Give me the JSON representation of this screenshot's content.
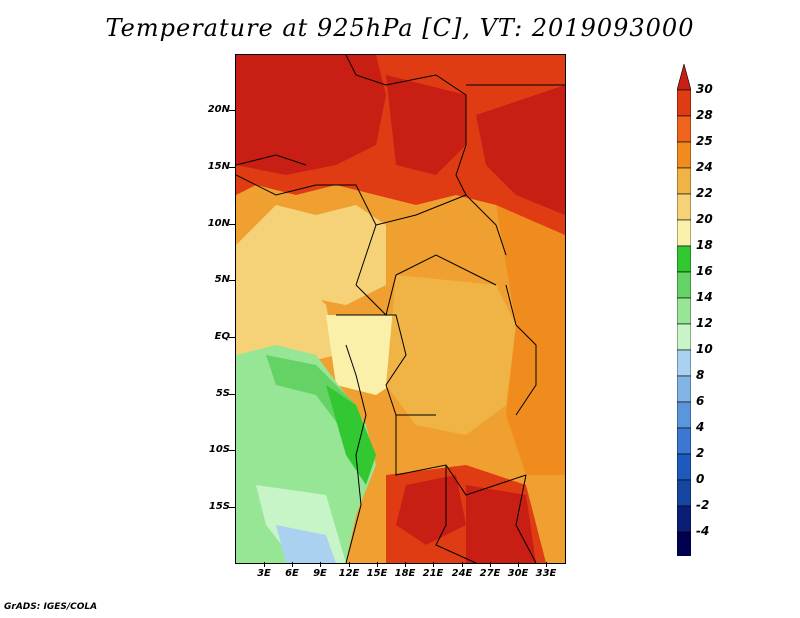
{
  "title": "Temperature at 925hPa [C], VT: 2019093000",
  "footer": "GrADS: IGES/COLA",
  "map": {
    "lat_labels": [
      "20N",
      "15N",
      "10N",
      "5N",
      "EQ",
      "5S",
      "10S",
      "15S"
    ],
    "lon_labels": [
      "3E",
      "6E",
      "9E",
      "12E",
      "15E",
      "18E",
      "21E",
      "24E",
      "27E",
      "30E",
      "33E"
    ]
  },
  "colorbar": {
    "labels": [
      "30",
      "28",
      "25",
      "24",
      "22",
      "20",
      "18",
      "16",
      "14",
      "12",
      "10",
      "8",
      "6",
      "4",
      "2",
      "0",
      "-2",
      "-4"
    ],
    "colors": [
      "#c81e14",
      "#e03c14",
      "#f0641e",
      "#f08c1e",
      "#f0b446",
      "#f5d278",
      "#faf0aa",
      "#32c832",
      "#64d264",
      "#96e696",
      "#c8f5c8",
      "#aad2f0",
      "#82b4e6",
      "#5a96dc",
      "#3c78d2",
      "#1e5abe",
      "#1446a0",
      "#0a1e78",
      "#000050",
      "#e6e6fa"
    ]
  }
}
